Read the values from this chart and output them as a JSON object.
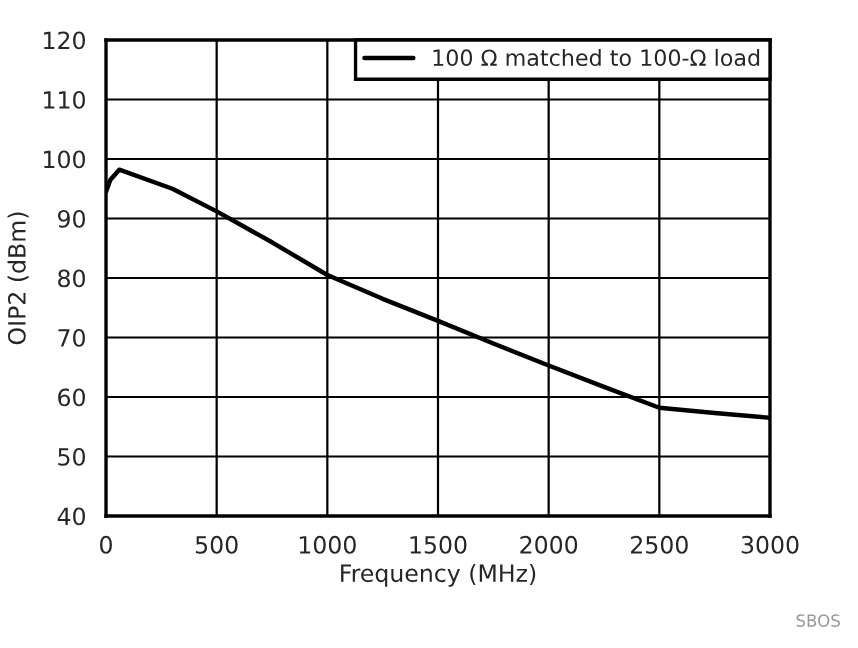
{
  "chart_data": {
    "type": "line",
    "xlabel": "Frequency (MHz)",
    "ylabel": "OIP2 (dBm)",
    "x": [
      0,
      20,
      60,
      300,
      500,
      750,
      1000,
      1250,
      1500,
      1750,
      2000,
      2250,
      2500,
      2750,
      3000
    ],
    "series": [
      {
        "name": "100 Ω matched to 100-Ω load",
        "color": "#000000",
        "values": [
          94.5,
          96.5,
          98.2,
          95,
          91.2,
          86,
          80.5,
          76.5,
          72.8,
          69,
          65.3,
          61.7,
          58.2,
          57.3,
          56.5
        ]
      }
    ],
    "xlim": [
      0,
      3000
    ],
    "ylim": [
      40,
      120
    ],
    "xticks": [
      0,
      500,
      1000,
      1500,
      2000,
      2500,
      3000
    ],
    "yticks": [
      40,
      50,
      60,
      70,
      80,
      90,
      100,
      110,
      120
    ],
    "grid": true,
    "legend": "top right",
    "line_style": "solid",
    "marker": "none",
    "annotations": [
      "SBOS"
    ]
  }
}
